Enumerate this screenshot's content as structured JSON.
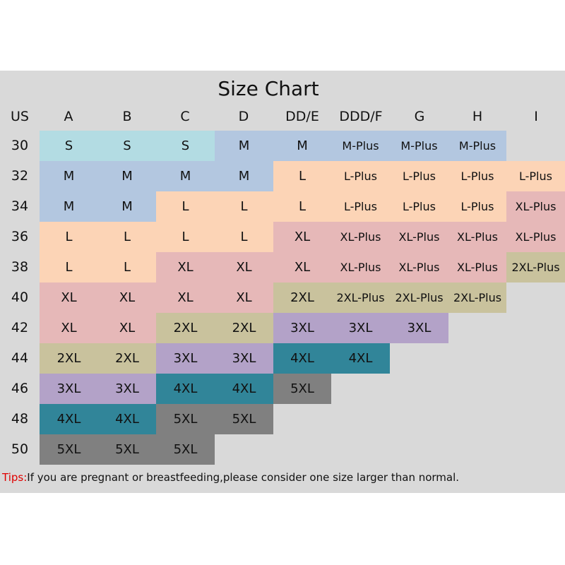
{
  "title": "Size Chart",
  "header": [
    "US",
    "A",
    "B",
    "C",
    "D",
    "DD/E",
    "DDD/F",
    "G",
    "H",
    "I"
  ],
  "rows": [
    {
      "us": "30",
      "sizes": [
        "S",
        "S",
        "S",
        "M",
        "M",
        "M-Plus",
        "M-Plus",
        "M-Plus",
        ""
      ]
    },
    {
      "us": "32",
      "sizes": [
        "M",
        "M",
        "M",
        "M",
        "L",
        "L-Plus",
        "L-Plus",
        "L-Plus",
        "L-Plus"
      ]
    },
    {
      "us": "34",
      "sizes": [
        "M",
        "M",
        "L",
        "L",
        "L",
        "L-Plus",
        "L-Plus",
        "L-Plus",
        "XL-Plus"
      ]
    },
    {
      "us": "36",
      "sizes": [
        "L",
        "L",
        "L",
        "L",
        "XL",
        "XL-Plus",
        "XL-Plus",
        "XL-Plus",
        "XL-Plus"
      ]
    },
    {
      "us": "38",
      "sizes": [
        "L",
        "L",
        "XL",
        "XL",
        "XL",
        "XL-Plus",
        "XL-Plus",
        "XL-Plus",
        "2XL-Plus"
      ]
    },
    {
      "us": "40",
      "sizes": [
        "XL",
        "XL",
        "XL",
        "XL",
        "2XL",
        "2XL-Plus",
        "2XL-Plus",
        "2XL-Plus",
        ""
      ]
    },
    {
      "us": "42",
      "sizes": [
        "XL",
        "XL",
        "2XL",
        "2XL",
        "3XL",
        "3XL",
        "3XL",
        "",
        ""
      ]
    },
    {
      "us": "44",
      "sizes": [
        "2XL",
        "2XL",
        "3XL",
        "3XL",
        "4XL",
        "4XL",
        "",
        "",
        ""
      ]
    },
    {
      "us": "46",
      "sizes": [
        "3XL",
        "3XL",
        "4XL",
        "4XL",
        "5XL",
        "",
        "",
        "",
        ""
      ]
    },
    {
      "us": "48",
      "sizes": [
        "4XL",
        "4XL",
        "5XL",
        "5XL",
        "",
        "",
        "",
        "",
        ""
      ]
    },
    {
      "us": "50",
      "sizes": [
        "5XL",
        "5XL",
        "5XL",
        "",
        "",
        "",
        "",
        "",
        ""
      ]
    }
  ],
  "colors": {
    "S": "#b3dce3",
    "M": "#b3c7e0",
    "M-Plus": "#b3c7e0",
    "L": "#fcd4b6",
    "L-Plus": "#fcd4b6",
    "XL": "#e6b8b8",
    "XL-Plus": "#e6b8b8",
    "2XL": "#c9c29d",
    "2XL-Plus": "#c9c29d",
    "3XL": "#b3a2c8",
    "4XL": "#318599",
    "5XL": "#808080"
  },
  "tips": {
    "label": "Tips:",
    "text": "If you are pregnant or breastfeeding,please consider one size larger than normal."
  }
}
